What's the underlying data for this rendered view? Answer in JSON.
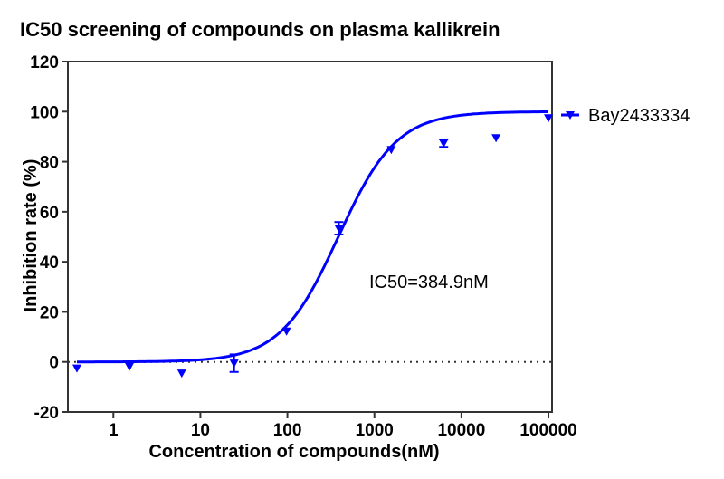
{
  "chart_data": {
    "type": "scatter",
    "title": "IC50 screening of compounds on plasma kallikrein",
    "xlabel": "Concentration of compounds(nM)",
    "ylabel": "Inhibition rate (%)",
    "x_scale": "log",
    "xlim": [
      0.3,
      110000
    ],
    "ylim": [
      -20,
      120
    ],
    "xticks": [
      1,
      10,
      100,
      1000,
      10000,
      100000
    ],
    "xtick_labels": [
      "1",
      "10",
      "100",
      "1000",
      "10000",
      "100000"
    ],
    "yticks": [
      -20,
      0,
      20,
      40,
      60,
      80,
      100,
      120
    ],
    "ytick_labels": [
      "-20",
      "0",
      "20",
      "40",
      "60",
      "80",
      "100",
      "120"
    ],
    "grid": false,
    "legend_position": "right",
    "zero_line": "dotted",
    "annotation": "IC50=384.9nM",
    "series": [
      {
        "name": "Bay2433334",
        "color": "#0000ff",
        "marker": "triangle-down",
        "x": [
          0.381,
          1.53,
          6.1,
          24.4,
          97.7,
          390.6,
          1562.5,
          6250,
          25000,
          100000
        ],
        "y": [
          -2.5,
          -1.8,
          -4.5,
          -0.5,
          12.3,
          53.4,
          84.8,
          87.4,
          89.5,
          97.5
        ],
        "error": [
          0,
          0,
          0,
          3.5,
          0,
          2.5,
          0,
          1.5,
          0,
          0
        ],
        "fit": {
          "model": "4PL",
          "bottom": 0,
          "top": 100,
          "ic50": 384.9,
          "hill": 1.3
        }
      }
    ]
  }
}
